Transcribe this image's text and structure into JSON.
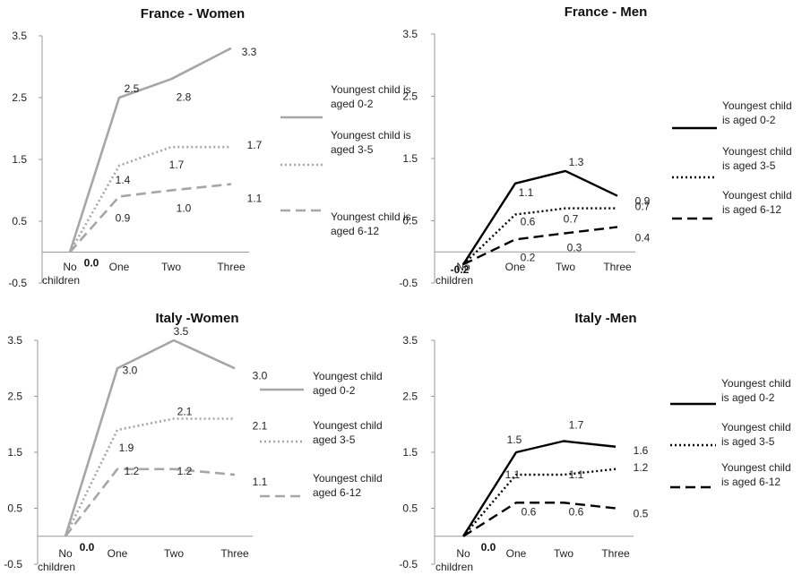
{
  "chart_data": [
    {
      "type": "line",
      "title": "France - Women",
      "categories": [
        "No children",
        "One",
        "Two",
        "Three"
      ],
      "ylim": [
        -0.5,
        3.5
      ],
      "yticks": [
        "3.5",
        "2.5",
        "1.5",
        "0.5",
        "-0.5"
      ],
      "grid": false,
      "legend_position": "right",
      "series": [
        {
          "name": "Youngest child is aged 0-2",
          "values": [
            0.0,
            2.5,
            2.8,
            3.3
          ],
          "labels": [
            "0.0",
            "2.5",
            "2.8",
            "3.3"
          ],
          "color": "#a6a6a6",
          "dash": "solid"
        },
        {
          "name": "Youngest child is aged 3-5",
          "values": [
            0.0,
            1.4,
            1.7,
            1.7
          ],
          "labels": [
            "",
            "1.4",
            "1.7",
            "1.7"
          ],
          "color": "#a6a6a6",
          "dash": "dotted"
        },
        {
          "name": "Youngest child is aged 6-12",
          "values": [
            0.0,
            0.9,
            1.0,
            1.1
          ],
          "labels": [
            "",
            "0.9",
            "1.0",
            "1.1"
          ],
          "color": "#a6a6a6",
          "dash": "dashed"
        }
      ]
    },
    {
      "type": "line",
      "title": "France - Men",
      "categories": [
        "No children",
        "One",
        "Two",
        "Three"
      ],
      "ylim": [
        -0.5,
        3.5
      ],
      "yticks": [
        "3.5",
        "2.5",
        "1.5",
        "0.5",
        "-0.5"
      ],
      "grid": false,
      "legend_position": "right",
      "series": [
        {
          "name": "Youngest child is aged  0-2",
          "values": [
            -0.2,
            1.1,
            1.3,
            0.9
          ],
          "labels": [
            "-0.2",
            "1.1",
            "1.3",
            "0.9"
          ],
          "color": "#000000",
          "dash": "solid"
        },
        {
          "name": "Youngest child is aged  3-5",
          "values": [
            -0.2,
            0.6,
            0.7,
            0.7
          ],
          "labels": [
            "",
            "0.6",
            "0.7",
            "0.7"
          ],
          "color": "#000000",
          "dash": "dotted"
        },
        {
          "name": "Youngest child is aged  6-12",
          "values": [
            -0.2,
            0.2,
            0.3,
            0.4
          ],
          "labels": [
            "",
            "0.2",
            "0.3",
            "0.4"
          ],
          "color": "#000000",
          "dash": "dashed"
        }
      ]
    },
    {
      "type": "line",
      "title": "Italy -Women",
      "categories": [
        "No children",
        "One",
        "Two",
        "Three"
      ],
      "ylim": [
        -0.5,
        3.5
      ],
      "yticks": [
        "3.5",
        "2.5",
        "1.5",
        "0.5",
        "-0.5"
      ],
      "grid": false,
      "legend_position": "right",
      "series": [
        {
          "name": "Youngest child aged  0-2",
          "values": [
            0.0,
            3.0,
            3.5,
            3.0
          ],
          "labels": [
            "0.0",
            "3.0",
            "3.5",
            "3.0"
          ],
          "color": "#a6a6a6",
          "dash": "solid"
        },
        {
          "name": "Youngest child aged  3-5",
          "values": [
            0.0,
            1.9,
            2.1,
            2.1
          ],
          "labels": [
            "",
            "1.9",
            "2.1",
            "2.1"
          ],
          "color": "#a6a6a6",
          "dash": "dotted"
        },
        {
          "name": "Youngest child aged  6-12",
          "values": [
            0.0,
            1.2,
            1.2,
            1.1
          ],
          "labels": [
            "",
            "1.2",
            "1.2",
            "1.1"
          ],
          "color": "#a6a6a6",
          "dash": "dashed"
        }
      ]
    },
    {
      "type": "line",
      "title": "Italy -Men",
      "categories": [
        "No children",
        "One",
        "Two",
        "Three"
      ],
      "ylim": [
        -0.5,
        3.5
      ],
      "yticks": [
        "3.5",
        "2.5",
        "1.5",
        "0.5",
        "-0.5"
      ],
      "grid": false,
      "legend_position": "right",
      "series": [
        {
          "name": "Youngest child is aged  0-2",
          "values": [
            0.0,
            1.5,
            1.7,
            1.6
          ],
          "labels": [
            "0.0",
            "1.5",
            "1.7",
            "1.6"
          ],
          "color": "#000000",
          "dash": "solid"
        },
        {
          "name": "Youngest child is aged  3-5",
          "values": [
            0.0,
            1.1,
            1.1,
            1.2
          ],
          "labels": [
            "",
            "1.1",
            "1.1",
            "1.2"
          ],
          "color": "#000000",
          "dash": "dotted"
        },
        {
          "name": "Youngest child is aged  6-12",
          "values": [
            0.0,
            0.6,
            0.6,
            0.5
          ],
          "labels": [
            "",
            "0.6",
            "0.6",
            "0.5"
          ],
          "color": "#000000",
          "dash": "dashed"
        }
      ]
    }
  ]
}
